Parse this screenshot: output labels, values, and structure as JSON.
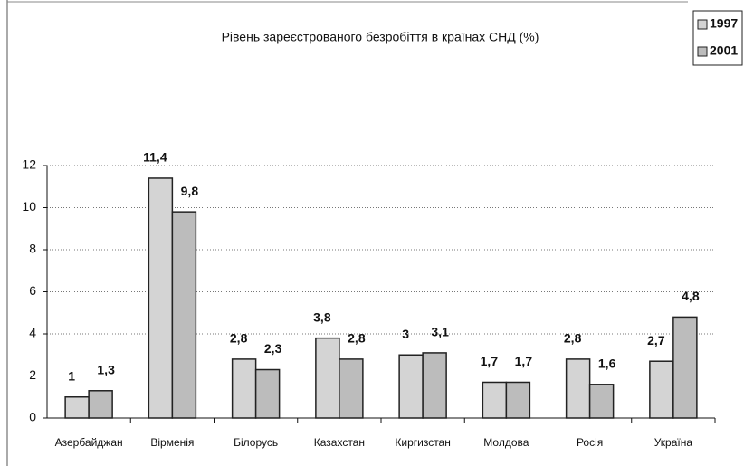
{
  "chart_data": {
    "type": "bar",
    "title": "Рівень зареєстрованого безробіття в країнах СНД (%)",
    "categories": [
      "Азербайджан",
      "Вірменія",
      "Білорусь",
      "Казахстан",
      "Киргизстан",
      "Молдова",
      "Росія",
      "Україна"
    ],
    "series": [
      {
        "name": "1997",
        "color": "#d4d4d4",
        "values": [
          1,
          11.4,
          2.8,
          3.8,
          3,
          1.7,
          2.8,
          2.7
        ],
        "value_labels": [
          "1",
          "11,4",
          "2,8",
          "3,8",
          "3",
          "1,7",
          "2,8",
          "2,7"
        ]
      },
      {
        "name": "2001",
        "color": "#bcbcbc",
        "values": [
          1.3,
          9.8,
          2.3,
          2.8,
          3.1,
          1.7,
          1.6,
          4.8
        ],
        "value_labels": [
          "1,3",
          "9,8",
          "2,3",
          "2,8",
          "3,1",
          "1,7",
          "1,6",
          "4,8"
        ]
      }
    ],
    "ylim": [
      0,
      12
    ],
    "yticks": [
      0,
      2,
      4,
      6,
      8,
      10,
      12
    ],
    "grid": true,
    "legend": "top-right"
  }
}
